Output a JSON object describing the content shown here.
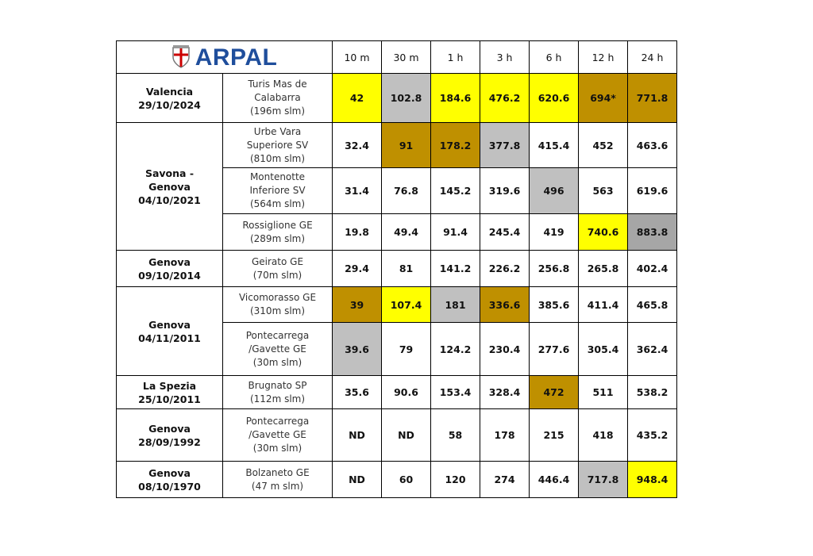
{
  "header": {
    "logo": "ARPAL",
    "columns": [
      "10 m",
      "30 m",
      "1 h",
      "3 h",
      "6 h",
      "12 h",
      "24 h"
    ]
  },
  "events": [
    {
      "event": [
        "Valencia",
        "29/10/2024"
      ],
      "stations": [
        {
          "name": [
            "Turis Mas de",
            "Calabarra",
            "(196m slm)"
          ],
          "values": [
            "42",
            "102.8",
            "184.6",
            "476.2",
            "620.6",
            "694*",
            "771.8"
          ],
          "colors": [
            "#ffff00",
            "#c0c0c0",
            "#ffff00",
            "#ffff00",
            "#ffff00",
            "#bf9000",
            "#bf9000"
          ]
        }
      ]
    },
    {
      "event": [
        "Savona -",
        "Genova",
        "04/10/2021"
      ],
      "stations": [
        {
          "name": [
            "Urbe Vara",
            "Superiore SV",
            "(810m slm)"
          ],
          "values": [
            "32.4",
            "91",
            "178.2",
            "377.8",
            "415.4",
            "452",
            "463.6"
          ],
          "colors": [
            null,
            "#bf9000",
            "#bf9000",
            "#c0c0c0",
            null,
            null,
            null
          ]
        },
        {
          "name": [
            "Montenotte",
            "Inferiore SV",
            "(564m slm)"
          ],
          "values": [
            "31.4",
            "76.8",
            "145.2",
            "319.6",
            "496",
            "563",
            "619.6"
          ],
          "colors": [
            null,
            null,
            null,
            null,
            "#c0c0c0",
            null,
            null
          ]
        },
        {
          "name": [
            "Rossiglione GE",
            "(289m slm)"
          ],
          "values": [
            "19.8",
            "49.4",
            "91.4",
            "245.4",
            "419",
            "740.6",
            "883.8"
          ],
          "colors": [
            null,
            null,
            null,
            null,
            null,
            "#ffff00",
            "#a6a6a6"
          ]
        }
      ]
    },
    {
      "event": [
        "Genova",
        "09/10/2014"
      ],
      "stations": [
        {
          "name": [
            "Geirato GE",
            "(70m slm)"
          ],
          "values": [
            "29.4",
            "81",
            "141.2",
            "226.2",
            "256.8",
            "265.8",
            "402.4"
          ],
          "colors": [
            null,
            null,
            null,
            null,
            null,
            null,
            null
          ]
        }
      ]
    },
    {
      "event": [
        "Genova",
        "04/11/2011"
      ],
      "stations": [
        {
          "name": [
            "Vicomorasso GE",
            "(310m slm)"
          ],
          "values": [
            "39",
            "107.4",
            "181",
            "336.6",
            "385.6",
            "411.4",
            "465.8"
          ],
          "colors": [
            "#bf9000",
            "#ffff00",
            "#c0c0c0",
            "#bf9000",
            null,
            null,
            null
          ]
        },
        {
          "name": [
            "Pontecarrega",
            "/Gavette GE",
            "(30m slm)"
          ],
          "values": [
            "39.6",
            "79",
            "124.2",
            "230.4",
            "277.6",
            "305.4",
            "362.4"
          ],
          "colors": [
            "#c0c0c0",
            null,
            null,
            null,
            null,
            null,
            null
          ]
        }
      ]
    },
    {
      "event": [
        "La Spezia",
        "25/10/2011"
      ],
      "stations": [
        {
          "name": [
            "Brugnato SP",
            "(112m slm)"
          ],
          "values": [
            "35.6",
            "90.6",
            "153.4",
            "328.4",
            "472",
            "511",
            "538.2"
          ],
          "colors": [
            null,
            null,
            null,
            null,
            "#bf9000",
            null,
            null
          ]
        }
      ]
    },
    {
      "event": [
        "Genova",
        "28/09/1992"
      ],
      "stations": [
        {
          "name": [
            "Pontecarrega",
            "/Gavette GE",
            "(30m slm)"
          ],
          "values": [
            "ND",
            "ND",
            "58",
            "178",
            "215",
            "418",
            "435.2"
          ],
          "colors": [
            null,
            null,
            null,
            null,
            null,
            null,
            null
          ]
        }
      ]
    },
    {
      "event": [
        "Genova",
        "08/10/1970"
      ],
      "stations": [
        {
          "name": [
            "Bolzaneto GE",
            "(47 m slm)"
          ],
          "values": [
            "ND",
            "60",
            "120",
            "274",
            "446.4",
            "717.8",
            "948.4"
          ],
          "colors": [
            null,
            null,
            null,
            null,
            null,
            "#c0c0c0",
            "#ffff00"
          ]
        }
      ]
    }
  ]
}
